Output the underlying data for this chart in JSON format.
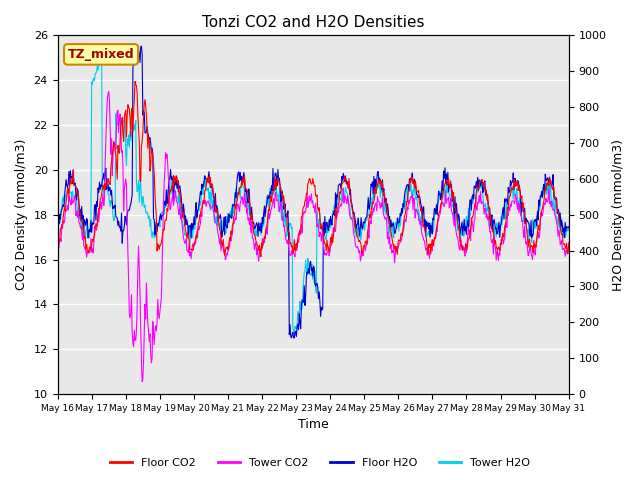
{
  "title": "Tonzi CO2 and H2O Densities",
  "xlabel": "Time",
  "ylabel_left": "CO2 Density (mmol/m3)",
  "ylabel_right": "H2O Density (mmol/m3)",
  "ylim_left": [
    10,
    26
  ],
  "ylim_right": [
    0,
    1000
  ],
  "yticks_left": [
    10,
    12,
    14,
    16,
    18,
    20,
    22,
    24,
    26
  ],
  "yticks_right": [
    0,
    100,
    200,
    300,
    400,
    500,
    600,
    700,
    800,
    900,
    1000
  ],
  "colors": {
    "floor_co2": "#FF0000",
    "tower_co2": "#FF00FF",
    "floor_h2o": "#0000CC",
    "tower_h2o": "#00CCEE"
  },
  "annotation": {
    "text": "TZ_mixed",
    "bgcolor": "#FFFFAA",
    "edgecolor": "#CC8800",
    "textcolor": "#AA0000"
  },
  "legend": [
    "Floor CO2",
    "Tower CO2",
    "Floor H2O",
    "Tower H2O"
  ],
  "xtick_labels": [
    "May 16",
    "May 17",
    "May 18",
    "May 19",
    "May 20",
    "May 21",
    "May 22",
    "May 23",
    "May 24",
    "May 25",
    "May 26",
    "May 27",
    "May 28",
    "May 29",
    "May 30",
    "May 31"
  ],
  "background_color": "#E8E8E8",
  "grid_color": "#FFFFFF",
  "figsize": [
    6.4,
    4.8
  ],
  "dpi": 100
}
